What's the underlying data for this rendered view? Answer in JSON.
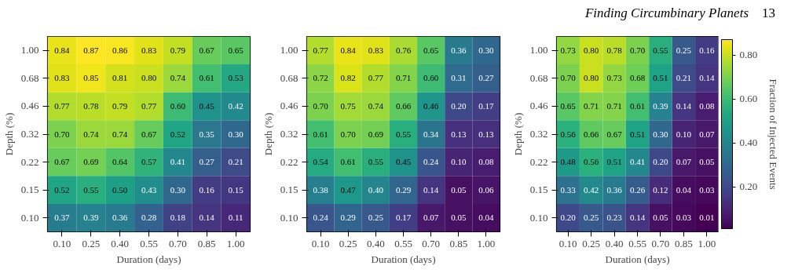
{
  "chart_data": [
    {
      "type": "heatmap",
      "xlabel": "Duration (days)",
      "ylabel": "Depth (%)",
      "grid": false,
      "categories": [
        "0.10",
        "0.25",
        "0.40",
        "0.55",
        "0.70",
        "0.85",
        "1.00"
      ],
      "y_categories": [
        "1.00",
        "0.68",
        "0.46",
        "0.32",
        "0.22",
        "0.15",
        "0.10"
      ],
      "cells": [
        [
          0.84,
          0.87,
          0.86,
          0.83,
          0.79,
          0.67,
          0.65
        ],
        [
          0.83,
          0.85,
          0.81,
          0.8,
          0.74,
          0.61,
          0.53
        ],
        [
          0.77,
          0.78,
          0.79,
          0.77,
          0.6,
          0.45,
          0.42
        ],
        [
          0.7,
          0.74,
          0.74,
          0.67,
          0.52,
          0.35,
          0.3
        ],
        [
          0.67,
          0.69,
          0.64,
          0.57,
          0.41,
          0.27,
          0.21
        ],
        [
          0.52,
          0.55,
          0.5,
          0.43,
          0.3,
          0.16,
          0.15
        ],
        [
          0.37,
          0.39,
          0.36,
          0.28,
          0.18,
          0.14,
          0.11
        ]
      ],
      "cell_labels": [
        [
          "0.84",
          "0.87",
          "0.86",
          "0.83",
          "0.79",
          "0.67",
          "0.65"
        ],
        [
          "0.83",
          "0.85",
          "0.81",
          "0.80",
          "0.74",
          "0.61",
          "0.53"
        ],
        [
          "0.77",
          "0.78",
          "0.79",
          "0.77",
          "0.60",
          "0.45",
          "0.42"
        ],
        [
          "0.70",
          "0.74",
          "0.74",
          "0.67",
          "0.52",
          "0.35",
          "0.30"
        ],
        [
          "0.67",
          "0.69",
          "0.64",
          "0.57",
          "0.41",
          "0.27",
          "0.21"
        ],
        [
          "0.52",
          "0.55",
          "0.50",
          "0.43",
          "0.30",
          "0.16",
          "0.15"
        ],
        [
          "0.37",
          "0.39",
          "0.36",
          "0.28",
          "0.18",
          "0.14",
          "0.11"
        ]
      ]
    },
    {
      "type": "heatmap",
      "xlabel": "Duration (days)",
      "ylabel": "Depth (%)",
      "grid": false,
      "categories": [
        "0.10",
        "0.25",
        "0.40",
        "0.55",
        "0.70",
        "0.85",
        "1.00"
      ],
      "y_categories": [
        "1.00",
        "0.68",
        "0.46",
        "0.32",
        "0.22",
        "0.15",
        "0.10"
      ],
      "cells": [
        [
          0.77,
          0.84,
          0.83,
          0.76,
          0.65,
          0.36,
          0.3
        ],
        [
          0.72,
          0.82,
          0.77,
          0.71,
          0.6,
          0.31,
          0.27
        ],
        [
          0.7,
          0.75,
          0.74,
          0.66,
          0.46,
          0.2,
          0.17
        ],
        [
          0.61,
          0.7,
          0.69,
          0.55,
          0.34,
          0.13,
          0.13
        ],
        [
          0.54,
          0.61,
          0.55,
          0.45,
          0.24,
          0.1,
          0.08
        ],
        [
          0.38,
          0.47,
          0.4,
          0.29,
          0.14,
          0.05,
          0.06
        ],
        [
          0.24,
          0.29,
          0.25,
          0.17,
          0.07,
          0.05,
          0.04
        ]
      ],
      "cell_labels": [
        [
          "0.77",
          "0.84",
          "0.83",
          "0.76",
          "0.65",
          "0.36",
          "0.30"
        ],
        [
          "0.72",
          "0.82",
          "0.77",
          "0.71",
          "0.60",
          "0.31",
          "0.27"
        ],
        [
          "0.70",
          "0.75",
          "0.74",
          "0.66",
          "0.46",
          "0.20",
          "0.17"
        ],
        [
          "0.61",
          "0.70",
          "0.69",
          "0.55",
          "0.34",
          "0.13",
          "0.13"
        ],
        [
          "0.54",
          "0.61",
          "0.55",
          "0.45",
          "0.24",
          "0.10",
          "0.08"
        ],
        [
          "0.38",
          "0.47",
          "0.40",
          "0.29",
          "0.14",
          "0.05",
          "0.06"
        ],
        [
          "0.24",
          "0.29",
          "0.25",
          "0.17",
          "0.07",
          "0.05",
          "0.04"
        ]
      ]
    },
    {
      "type": "heatmap",
      "xlabel": "Duration (days)",
      "ylabel": "Depth (%)",
      "grid": false,
      "annotations": [
        "Finding Circumbinary Planets",
        "13"
      ],
      "categories": [
        "0.10",
        "0.25",
        "0.40",
        "0.55",
        "0.70",
        "0.85",
        "1.00"
      ],
      "y_categories": [
        "1.00",
        "0.68",
        "0.46",
        "0.32",
        "0.22",
        "0.15",
        "0.10"
      ],
      "clim": [
        0.01,
        0.87
      ],
      "cticks": [
        {
          "value": 0.2,
          "label": "0.20"
        },
        {
          "value": 0.4,
          "label": "0.40"
        },
        {
          "value": 0.6,
          "label": "0.60"
        },
        {
          "value": 0.8,
          "label": "0.80"
        }
      ],
      "clabel": "Fraction of Injected Events",
      "cells": [
        [
          0.73,
          0.8,
          0.78,
          0.7,
          0.55,
          0.25,
          0.16
        ],
        [
          0.7,
          0.8,
          0.73,
          0.68,
          0.51,
          0.21,
          0.14
        ],
        [
          0.65,
          0.71,
          0.71,
          0.61,
          0.39,
          0.14,
          0.08
        ],
        [
          0.56,
          0.66,
          0.67,
          0.51,
          0.3,
          0.1,
          0.07
        ],
        [
          0.48,
          0.56,
          0.51,
          0.41,
          0.2,
          0.07,
          0.05
        ],
        [
          0.33,
          0.42,
          0.36,
          0.26,
          0.12,
          0.04,
          0.03
        ],
        [
          0.2,
          0.25,
          0.23,
          0.14,
          0.05,
          0.03,
          0.01
        ]
      ],
      "cell_labels": [
        [
          "0.73",
          "0.80",
          "0.78",
          "0.70",
          "0.55",
          "0.25",
          "0.16"
        ],
        [
          "0.70",
          "0.80",
          "0.73",
          "0.68",
          "0.51",
          "0.21",
          "0.14"
        ],
        [
          "0.65",
          "0.71",
          "0.71",
          "0.61",
          "0.39",
          "0.14",
          "0.08"
        ],
        [
          "0.56",
          "0.66",
          "0.67",
          "0.51",
          "0.30",
          "0.10",
          "0.07"
        ],
        [
          "0.48",
          "0.56",
          "0.51",
          "0.41",
          "0.20",
          "0.07",
          "0.05"
        ],
        [
          "0.33",
          "0.42",
          "0.36",
          "0.26",
          "0.12",
          "0.04",
          "0.03"
        ],
        [
          "0.20",
          "0.25",
          "0.23",
          "0.14",
          "0.05",
          "0.03",
          "0.01"
        ]
      ]
    }
  ]
}
